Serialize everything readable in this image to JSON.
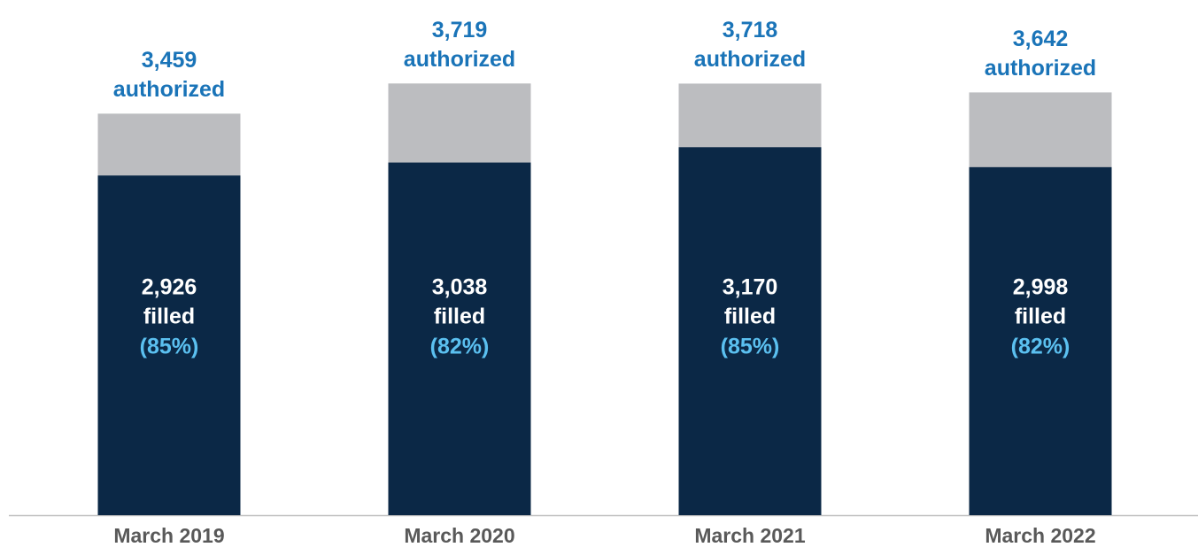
{
  "chart_data": {
    "type": "bar",
    "categories": [
      "March 2019",
      "March 2020",
      "March 2021",
      "March 2022"
    ],
    "ylim": [
      0,
      4400
    ],
    "series": [
      {
        "label": "authorized",
        "color": "#bcbdc0",
        "label_color": "#1a74b8",
        "values": [
          3459,
          3719,
          3718,
          3642
        ],
        "value_labels": [
          "3,459",
          "3,719",
          "3,718",
          "3,642"
        ]
      },
      {
        "label": "filled",
        "color": "#0b2846",
        "label_color": "#ffffff",
        "values": [
          2926,
          3038,
          3170,
          2998
        ],
        "value_labels": [
          "2,926",
          "3,038",
          "3,170",
          "2,998"
        ]
      }
    ],
    "filled_percent": {
      "color": "#5bc0f0",
      "values": [
        85,
        82,
        85,
        82
      ],
      "value_labels": [
        "(85%)",
        "(82%)",
        "(85%)",
        "(82%)"
      ]
    }
  }
}
